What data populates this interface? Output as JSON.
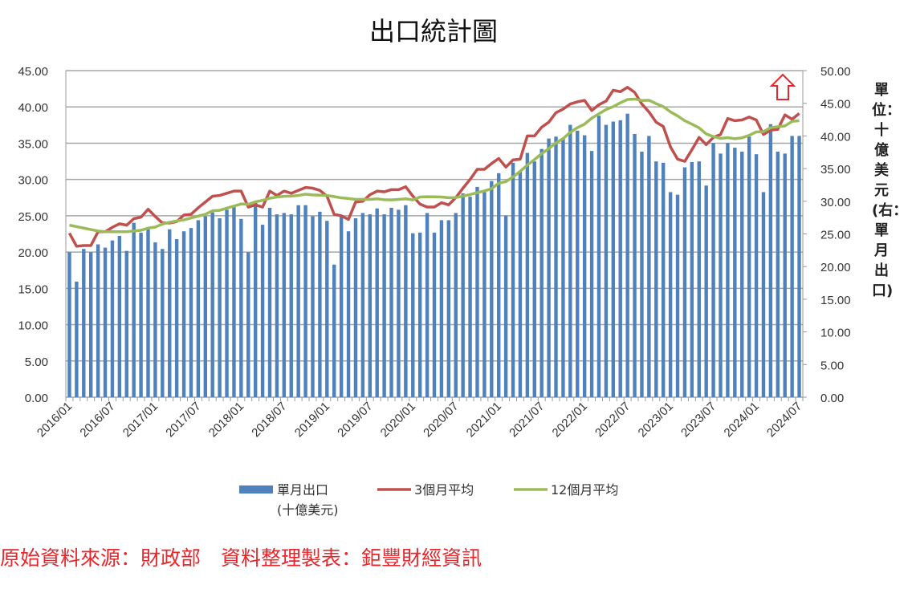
{
  "title": "出口統計圖",
  "source_text": "原始資料來源：財政部　資料整理製表：鉅豐財經資訊",
  "right_axis_title": "單位：十億美元(右：單月出口)",
  "chart_data": {
    "type": "bar+line",
    "title": "出口統計圖",
    "left_axis": {
      "range": [
        0,
        45
      ],
      "ticks": [
        "0.00",
        "5.00",
        "10.00",
        "15.00",
        "20.00",
        "25.00",
        "30.00",
        "35.00",
        "40.00",
        "45.00"
      ]
    },
    "right_axis": {
      "range": [
        0,
        50
      ],
      "ticks": [
        "0.00",
        "5.00",
        "10.00",
        "15.00",
        "20.00",
        "25.00",
        "30.00",
        "35.00",
        "40.00",
        "45.00",
        "50.00"
      ],
      "label": "單位：十億美元(右：單月出口)"
    },
    "x_tick_labels": [
      "2016/01",
      "2016/07",
      "2017/01",
      "2017/07",
      "2018/01",
      "2018/07",
      "2019/01",
      "2019/07",
      "2020/01",
      "2020/07",
      "2021/01",
      "2021/07",
      "2022/01",
      "2022/07",
      "2023/01",
      "2023/07",
      "2024/01",
      "2024/07"
    ],
    "start_month": "2016/01",
    "grid": true,
    "legend_position": "bottom",
    "annotation": "red-up-arrow",
    "series": [
      {
        "name": "單月出口",
        "name_line2": "(十億美元)",
        "type": "bar",
        "axis": "right",
        "color": "#4f81bd",
        "values": [
          22.2,
          17.7,
          22.7,
          22.2,
          23.4,
          22.9,
          24.0,
          24.7,
          22.4,
          26.7,
          25.2,
          25.7,
          23.7,
          22.7,
          25.7,
          24.2,
          25.4,
          25.9,
          27.1,
          27.7,
          28.3,
          27.4,
          28.7,
          29.1,
          27.3,
          22.2,
          29.9,
          26.4,
          29.0,
          28.0,
          28.2,
          28.0,
          29.4,
          29.4,
          27.7,
          28.4,
          27.0,
          20.3,
          27.8,
          25.4,
          27.4,
          28.2,
          28.0,
          28.9,
          28.0,
          29.0,
          28.7,
          29.4,
          25.1,
          25.2,
          28.2,
          25.2,
          27.1,
          27.1,
          28.2,
          31.2,
          30.7,
          32.2,
          31.4,
          33.1,
          34.3,
          27.8,
          35.9,
          34.6,
          37.4,
          36.1,
          38.0,
          39.6,
          39.9,
          39.6,
          41.7,
          40.8,
          40.1,
          37.7,
          43.1,
          41.7,
          42.2,
          42.4,
          43.4,
          40.3,
          37.6,
          40.0,
          36.1,
          35.9,
          31.4,
          31.0,
          35.2,
          36.0,
          36.1,
          32.4,
          38.9,
          37.3,
          38.9,
          38.2,
          37.6,
          39.9,
          37.2,
          31.4,
          41.8,
          37.6,
          37.3,
          40.0,
          40.0
        ]
      },
      {
        "name": "3個月平均",
        "type": "line",
        "axis": "left",
        "color": "#c0504d",
        "values": [
          22.6,
          20.8,
          20.9,
          20.9,
          22.8,
          22.8,
          23.4,
          23.9,
          23.7,
          24.6,
          24.8,
          25.9,
          24.9,
          24.0,
          24.0,
          24.2,
          25.1,
          25.2,
          26.1,
          26.9,
          27.7,
          27.8,
          28.1,
          28.4,
          28.4,
          26.2,
          26.5,
          26.2,
          28.4,
          27.8,
          28.4,
          28.1,
          28.5,
          28.9,
          28.8,
          28.5,
          27.7,
          25.2,
          25.0,
          24.5,
          26.9,
          27.0,
          27.9,
          28.4,
          28.3,
          28.6,
          28.6,
          29.0,
          27.7,
          26.6,
          26.2,
          26.2,
          26.8,
          26.5,
          27.5,
          28.8,
          30.0,
          31.4,
          31.4,
          32.2,
          32.9,
          31.7,
          32.7,
          32.8,
          36.0,
          36.0,
          37.2,
          37.9,
          39.2,
          39.7,
          40.4,
          40.7,
          40.9,
          39.5,
          40.3,
          40.8,
          42.3,
          42.1,
          42.7,
          42.0,
          40.4,
          39.3,
          37.9,
          37.3,
          34.5,
          32.8,
          32.5,
          34.1,
          35.8,
          34.8,
          35.8,
          36.2,
          38.4,
          38.1,
          38.2,
          38.6,
          38.2,
          36.2,
          36.8,
          36.9,
          38.9,
          38.3,
          39.1
        ]
      },
      {
        "name": "12個月平均",
        "type": "line",
        "axis": "left",
        "color": "#9bbb59",
        "values": [
          23.7,
          23.5,
          23.3,
          23.1,
          22.9,
          22.8,
          22.8,
          22.8,
          22.8,
          22.9,
          23.0,
          23.3,
          23.44,
          23.86,
          24.11,
          24.28,
          24.44,
          24.69,
          24.95,
          25.2,
          25.69,
          25.75,
          26.04,
          26.33,
          26.63,
          26.58,
          26.93,
          27.12,
          27.42,
          27.59,
          27.68,
          27.71,
          27.8,
          27.97,
          27.88,
          27.83,
          27.8,
          27.64,
          27.47,
          27.38,
          27.25,
          27.27,
          27.25,
          27.33,
          27.21,
          27.18,
          27.26,
          27.34,
          27.18,
          27.59,
          27.63,
          27.61,
          27.58,
          27.49,
          27.51,
          27.7,
          27.93,
          28.19,
          28.42,
          28.73,
          29.49,
          29.71,
          30.35,
          31.13,
          31.99,
          32.74,
          33.56,
          34.26,
          35.03,
          35.64,
          36.5,
          37.14,
          37.63,
          38.45,
          39.05,
          39.64,
          40.04,
          40.57,
          41.02,
          41.08,
          40.88,
          40.92,
          40.45,
          40.04,
          39.32,
          38.76,
          38.1,
          37.63,
          37.12,
          36.28,
          35.91,
          35.66,
          35.77,
          35.62,
          35.74,
          36.08,
          36.56,
          36.59,
          37.14,
          37.28,
          37.38,
          38.01,
          38.1
        ]
      }
    ]
  }
}
